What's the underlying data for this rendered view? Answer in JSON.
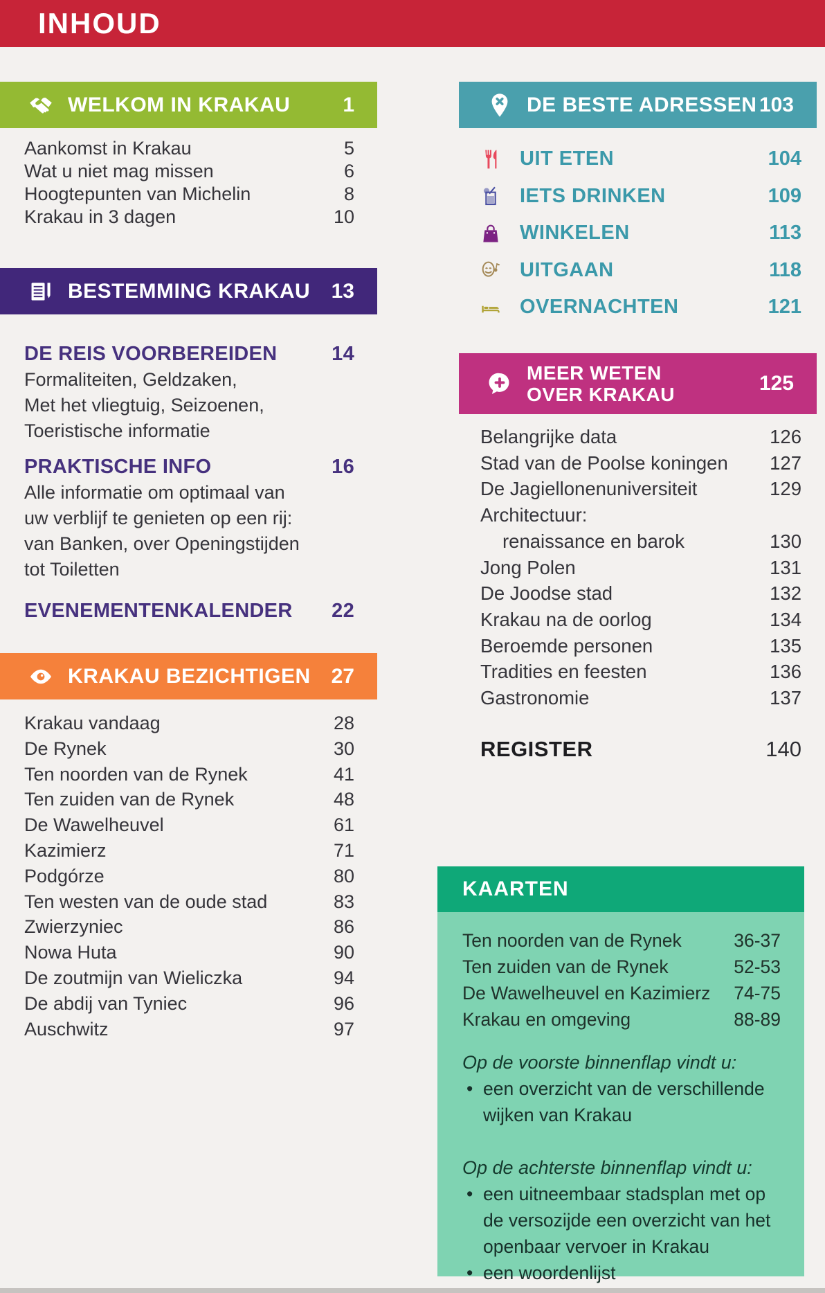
{
  "page": {
    "title": "INHOUD"
  },
  "colors": {
    "banner_red": "#c72438",
    "welkom_green": "#94ba33",
    "bestemming_purple": "#41277a",
    "accent_purple": "#46317e",
    "bezichtigen_orange": "#f5813b",
    "adressen_teal_bar": "#4aa0ad",
    "adressen_teal_text": "#3b99aa",
    "meer_weten_magenta": "#bf3180",
    "kaarten_green_dark": "#0fa878",
    "kaarten_green_light": "#7fd3b2",
    "text_dark": "#35343a",
    "page_bg": "#f3f1ef"
  },
  "welkom": {
    "header": {
      "label": "WELKOM IN KRAKAU",
      "page": "1",
      "icon": "handshake-icon"
    },
    "items": [
      {
        "label": "Aankomst in Krakau",
        "page": "5"
      },
      {
        "label": "Wat u niet mag missen",
        "page": "6"
      },
      {
        "label": "Hoogtepunten van Michelin",
        "page": "8"
      },
      {
        "label": "Krakau in 3 dagen",
        "page": "10"
      }
    ]
  },
  "bestemming": {
    "header": {
      "label": "BESTEMMING KRAKAU",
      "page": "13",
      "icon": "notebook-pencil-icon"
    },
    "subsections": [
      {
        "title": "DE REIS VOORBEREIDEN",
        "page": "14",
        "body": [
          "Formaliteiten, Geldzaken,",
          "Met het vliegtuig, Seizoenen,",
          "Toeristische informatie"
        ]
      },
      {
        "title": "PRAKTISCHE INFO",
        "page": "16",
        "body": [
          "Alle informatie om optimaal van",
          "uw verblijf te genieten op een rij:",
          "van Banken, over Openingstijden",
          "tot Toiletten"
        ]
      },
      {
        "title": "EVENEMENTENKALENDER",
        "page": "22",
        "body": []
      }
    ]
  },
  "bezichtigen": {
    "header": {
      "label": "KRAKAU BEZICHTIGEN",
      "page": "27",
      "icon": "eye-icon"
    },
    "items": [
      {
        "label": "Krakau vandaag",
        "page": "28"
      },
      {
        "label": "De Rynek",
        "page": "30"
      },
      {
        "label": "Ten noorden van de Rynek",
        "page": "41"
      },
      {
        "label": "Ten zuiden van de Rynek",
        "page": "48"
      },
      {
        "label": "De Wawelheuvel",
        "page": "61"
      },
      {
        "label": "Kazimierz",
        "page": "71"
      },
      {
        "label": "Podgórze",
        "page": "80"
      },
      {
        "label": "Ten westen van de oude stad",
        "page": "83"
      },
      {
        "label": "Zwierzyniec",
        "page": "86"
      },
      {
        "label": "Nowa Huta",
        "page": "90"
      },
      {
        "label": "De zoutmijn van Wieliczka",
        "page": "94"
      },
      {
        "label": "De abdij van Tyniec",
        "page": "96"
      },
      {
        "label": "Auschwitz",
        "page": "97"
      }
    ]
  },
  "adressen": {
    "header": {
      "label": "DE BESTE ADRESSEN",
      "page": "103",
      "icon": "map-pin-x-icon"
    },
    "items": [
      {
        "label": "UIT ETEN",
        "page": "104",
        "icon": "cutlery-icon",
        "icon_color": "#e8495d"
      },
      {
        "label": "IETS DRINKEN",
        "page": "109",
        "icon": "cocktail-icon",
        "icon_color": "#4a50a2"
      },
      {
        "label": "WINKELEN",
        "page": "113",
        "icon": "shopping-bag-icon",
        "icon_color": "#7c2383"
      },
      {
        "label": "UITGAAN",
        "page": "118",
        "icon": "theater-masks-icon",
        "icon_color": "#a58a58"
      },
      {
        "label": "OVERNACHTEN",
        "page": "121",
        "icon": "bed-icon",
        "icon_color": "#b0a233"
      }
    ]
  },
  "meer_weten": {
    "header": {
      "lines": [
        "MEER WETEN",
        "OVER KRAKAU"
      ],
      "page": "125",
      "icon": "speech-bubble-plus-icon"
    },
    "items": [
      {
        "label": "Belangrijke data",
        "page": "126"
      },
      {
        "label": "Stad van de Poolse koningen",
        "page": "127"
      },
      {
        "label": "De Jagiellonenuniversiteit",
        "page": "129"
      },
      {
        "label": "Architectuur:",
        "page": ""
      },
      {
        "label": "renaissance en barok",
        "page": "130",
        "indent": true
      },
      {
        "label": "Jong Polen",
        "page": "131"
      },
      {
        "label": "De Joodse stad",
        "page": "132"
      },
      {
        "label": "Krakau na de oorlog",
        "page": "134"
      },
      {
        "label": "Beroemde personen",
        "page": "135"
      },
      {
        "label": "Tradities en feesten",
        "page": "136"
      },
      {
        "label": "Gastronomie",
        "page": "137"
      }
    ]
  },
  "register": {
    "label": "REGISTER",
    "page": "140"
  },
  "kaarten": {
    "title": "KAARTEN",
    "items": [
      {
        "label": "Ten noorden van de Rynek",
        "page": "36-37"
      },
      {
        "label": "Ten zuiden van de Rynek",
        "page": "52-53"
      },
      {
        "label": "De Wawelheuvel en Kazimierz",
        "page": "74-75"
      },
      {
        "label": "Krakau en omgeving",
        "page": "88-89"
      }
    ],
    "notes": [
      {
        "heading": "Op de voorste binnenflap vindt u:",
        "bullets": [
          "een overzicht van de verschillende wijken van Krakau"
        ]
      },
      {
        "heading": "Op de achterste binnenflap vindt u:",
        "bullets": [
          "een uitneembaar stadsplan met op de versozijde een overzicht van het openbaar vervoer in Krakau",
          "een woordenlijst"
        ]
      }
    ]
  }
}
